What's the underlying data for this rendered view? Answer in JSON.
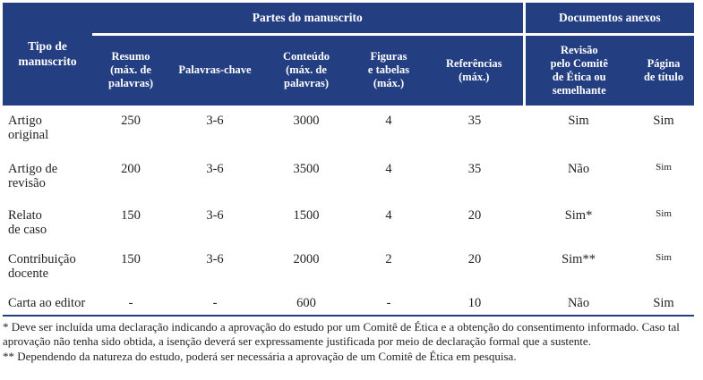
{
  "colors": {
    "header_bg": "#243E82",
    "header_text": "#FFFFFF",
    "body_text": "#231F20",
    "separator": "#243E82",
    "page_bg": "#FFFFFF"
  },
  "table": {
    "group_headers": [
      {
        "label": "Partes do manuscrito"
      },
      {
        "label": "Documentos anexos"
      }
    ],
    "columns": [
      {
        "label": "Tipo de\nmanuscrito"
      },
      {
        "label": "Resumo\n(máx. de\npalavras)"
      },
      {
        "label": "Palavras-chave"
      },
      {
        "label": "Conteúdo\n(máx. de\npalavras)"
      },
      {
        "label": "Figuras\ne tabelas\n(máx.)"
      },
      {
        "label": "Referências\n(máx.)"
      },
      {
        "label": "Revisão\npelo Comitê\nde Ética ou\nsemelhante"
      },
      {
        "label": "Página\nde título"
      }
    ],
    "rows": [
      {
        "cells": [
          "Artigo\noriginal",
          "250",
          "3-6",
          "3000",
          "4",
          "35",
          "Sim",
          "Sim"
        ],
        "title_page_small": false
      },
      {
        "cells": [
          "Artigo de\nrevisão",
          "200",
          "3-6",
          "3500",
          "4",
          "35",
          "Não",
          "Sim"
        ],
        "title_page_small": true
      },
      {
        "cells": [
          "Relato\nde caso",
          "150",
          "3-6",
          "1500",
          "4",
          "20",
          "Sim*",
          "Sim"
        ],
        "title_page_small": true
      },
      {
        "cells": [
          "Contribuição\ndocente",
          "150",
          "3-6",
          "2000",
          "2",
          "20",
          "Sim**",
          "Sim"
        ],
        "title_page_small": true
      },
      {
        "cells": [
          "Carta ao editor",
          "-",
          "-",
          "600",
          "-",
          "10",
          "Não",
          "Sim"
        ],
        "title_page_small": false
      }
    ]
  },
  "footnotes": [
    "* Deve ser incluída uma declaração indicando a aprovação do estudo por um Comitê de Ética e a obtenção do consentimento informado. Caso tal aprovação não tenha sido obtida, a isenção deverá ser expressamente justificada por meio de declaração formal que a sustente.",
    "** Dependendo da natureza do estudo, poderá ser necessária a aprovação de um Comitê de Ética em pesquisa."
  ]
}
